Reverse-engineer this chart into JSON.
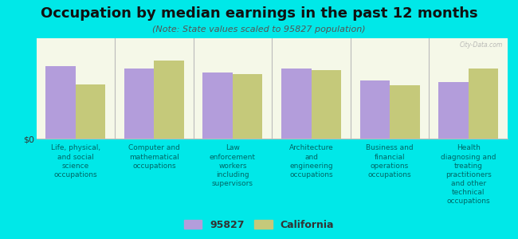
{
  "title": "Occupation by median earnings in the past 12 months",
  "subtitle": "(Note: State values scaled to 95827 population)",
  "categories": [
    "Life, physical,\nand social\nscience\noccupations",
    "Computer and\nmathematical\noccupations",
    "Law\nenforcement\nworkers\nincluding\nsupervisors",
    "Architecture\nand\nengineering\noccupations",
    "Business and\nfinancial\noperations\noccupations",
    "Health\ndiagnosing and\ntreating\npractitioners\nand other\ntechnical\noccupations"
  ],
  "values_95827": [
    0.72,
    0.7,
    0.66,
    0.7,
    0.58,
    0.56
  ],
  "values_california": [
    0.54,
    0.78,
    0.64,
    0.68,
    0.53,
    0.7
  ],
  "color_95827": "#b39ddb",
  "color_california": "#c5c97a",
  "background_color": "#00e8e8",
  "plot_bg_top": "#f5f8e8",
  "plot_bg_bottom": "#e8f0d0",
  "watermark": "City-Data.com",
  "legend_label_95827": "95827",
  "legend_label_california": "California",
  "ylabel": "$0",
  "bar_width": 0.38,
  "ylim": [
    0,
    1.0
  ],
  "title_fontsize": 13,
  "subtitle_fontsize": 8,
  "tick_label_fontsize": 6.5,
  "legend_fontsize": 9
}
